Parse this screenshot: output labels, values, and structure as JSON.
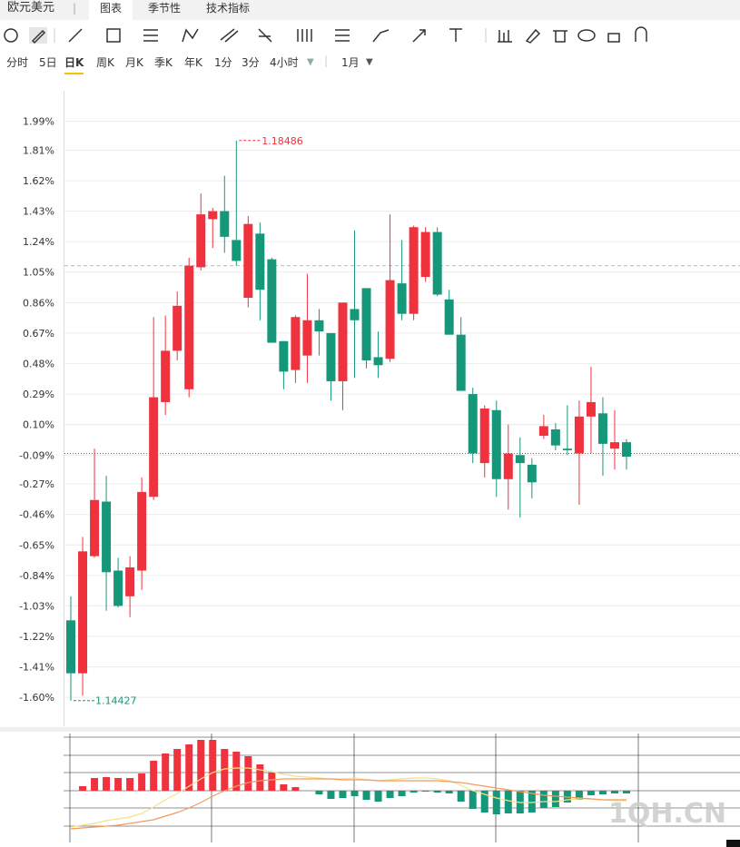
{
  "header": {
    "title": "欧元美元",
    "tabs": [
      "图表",
      "季节性",
      "技术指标"
    ]
  },
  "periods": [
    "分时",
    "5日",
    "日K",
    "周K",
    "月K",
    "季K",
    "年K",
    "1分",
    "3分",
    "4小时"
  ],
  "period_select": "1月",
  "watermark": "1QH.CN",
  "chart_data": [
    {
      "type": "candlestick",
      "up_color": "#f0323e",
      "down_color": "#17977a",
      "grid": true,
      "ylim": [
        -1.78,
        2.18
      ],
      "yticks": [
        {
          "value": 1.99,
          "label": "1.99%"
        },
        {
          "value": 1.81,
          "label": "1.81%"
        },
        {
          "value": 1.62,
          "label": "1.62%"
        },
        {
          "value": 1.43,
          "label": "1.43%"
        },
        {
          "value": 1.24,
          "label": "1.24%"
        },
        {
          "value": 1.05,
          "label": "1.05%"
        },
        {
          "value": 0.86,
          "label": "0.86%"
        },
        {
          "value": 0.67,
          "label": "0.67%"
        },
        {
          "value": 0.48,
          "label": "0.48%"
        },
        {
          "value": 0.29,
          "label": "0.29%"
        },
        {
          "value": 0.1,
          "label": "0.10%"
        },
        {
          "value": -0.09,
          "label": "-0.09%"
        },
        {
          "value": -0.27,
          "label": "-0.27%"
        },
        {
          "value": -0.46,
          "label": "-0.46%"
        },
        {
          "value": -0.65,
          "label": "-0.65%"
        },
        {
          "value": -0.84,
          "label": "-0.84%"
        },
        {
          "value": -1.03,
          "label": "-1.03%"
        },
        {
          "value": -1.22,
          "label": "-1.22%"
        },
        {
          "value": -1.41,
          "label": "-1.41%"
        },
        {
          "value": -1.6,
          "label": "-1.60%"
        }
      ],
      "open": [
        -1.12,
        -1.45,
        -0.72,
        -0.38,
        -0.81,
        -0.97,
        -0.81,
        -0.35,
        0.24,
        0.56,
        0.32,
        1.08,
        1.38,
        1.43,
        1.25,
        0.89,
        1.29,
        1.13,
        0.62,
        0.44,
        0.53,
        0.75,
        0.67,
        0.37,
        0.82,
        0.95,
        0.52,
        0.51,
        0.98,
        0.79,
        1.02,
        1.3,
        0.88,
        0.66,
        0.29,
        -0.14,
        0.19,
        -0.24,
        -0.09,
        -0.15,
        0.03,
        0.07,
        -0.05,
        -0.08,
        0.15,
        0.17,
        -0.05,
        -0.01
      ],
      "high": [
        -0.97,
        -0.6,
        -0.05,
        -0.22,
        -0.73,
        -0.72,
        -0.23,
        0.77,
        0.78,
        0.93,
        1.14,
        1.54,
        1.45,
        1.65,
        1.87,
        1.4,
        1.36,
        1.14,
        0.62,
        0.78,
        1.04,
        0.82,
        0.67,
        0.86,
        1.31,
        0.95,
        0.68,
        1.41,
        1.25,
        1.34,
        1.33,
        1.33,
        0.94,
        0.77,
        0.33,
        0.22,
        0.25,
        0.1,
        0.02,
        -0.11,
        0.16,
        0.11,
        0.22,
        0.25,
        0.46,
        0.27,
        0.19,
        0.01
      ],
      "low": [
        -1.62,
        -1.59,
        -0.73,
        -1.06,
        -1.04,
        -1.1,
        -0.93,
        -0.37,
        0.16,
        0.5,
        0.27,
        1.06,
        1.2,
        1.17,
        1.09,
        0.83,
        0.75,
        0.61,
        0.32,
        0.36,
        0.36,
        0.53,
        0.25,
        0.19,
        0.39,
        0.45,
        0.39,
        0.49,
        0.75,
        0.75,
        0.99,
        0.9,
        0.66,
        0.31,
        -0.14,
        -0.23,
        -0.35,
        -0.43,
        -0.48,
        -0.36,
        0.01,
        -0.06,
        -0.09,
        -0.4,
        -0.08,
        -0.22,
        -0.18,
        -0.18
      ],
      "close": [
        -1.45,
        -0.69,
        -0.37,
        -0.82,
        -1.03,
        -0.79,
        -0.32,
        0.27,
        0.56,
        0.84,
        1.09,
        1.41,
        1.43,
        1.27,
        1.12,
        1.35,
        0.94,
        0.61,
        0.43,
        0.77,
        0.75,
        0.68,
        0.37,
        0.86,
        0.75,
        0.5,
        0.47,
        1.0,
        0.79,
        1.33,
        1.3,
        0.91,
        0.66,
        0.31,
        -0.08,
        0.2,
        -0.24,
        -0.08,
        -0.14,
        -0.26,
        0.09,
        -0.03,
        -0.06,
        0.15,
        0.24,
        -0.02,
        -0.01,
        -0.1
      ],
      "annotations": [
        "1.18486",
        "1.14427"
      ],
      "reference_lines": [
        {
          "value": 1.09,
          "color": "#bbbbbb",
          "style": "dashed"
        },
        {
          "value": -0.08,
          "color": "#17977a",
          "style": "dotted"
        }
      ]
    },
    {
      "type": "macd",
      "ylim": [
        -5.7,
        6.3
      ],
      "histogram": [
        0,
        0.5,
        1.4,
        1.5,
        1.4,
        1.4,
        1.9,
        3.3,
        4.1,
        4.6,
        5.1,
        5.6,
        5.6,
        4.6,
        4.3,
        3.8,
        2.9,
        2,
        0.7,
        0.4,
        0,
        -0.4,
        -0.9,
        -0.8,
        -0.6,
        -1,
        -1.2,
        -0.8,
        -0.6,
        -0.2,
        -0.1,
        -0.2,
        -0.3,
        -1.2,
        -2,
        -2.4,
        -2.6,
        -2.5,
        -2.5,
        -2.4,
        -1.9,
        -1.8,
        -1.3,
        -1,
        -0.5,
        -0.4,
        -0.3,
        -0.3
      ],
      "up_color": "#f0323e",
      "down_color": "#17977a",
      "series": [
        {
          "color": "#f5e08a",
          "values": [
            -4,
            -3.8,
            -3.6,
            -3.3,
            -3.1,
            -2.9,
            -2.5,
            -1.8,
            -1,
            -0.3,
            0.5,
            1.3,
            2,
            2.4,
            2.5,
            2.5,
            2.3,
            2.1,
            1.8,
            1.6,
            1.5,
            1.4,
            1.3,
            1.3,
            1.4,
            1.2,
            1.1,
            1.2,
            1.3,
            1.4,
            1.4,
            1.3,
            1.1,
            0.6,
            0,
            -0.4,
            -0.8,
            -1.1,
            -1.3,
            -1.3,
            -1.2,
            -1.2,
            -1,
            -0.9,
            -0.9,
            -1,
            -1.1,
            -1.1
          ]
        },
        {
          "color": "#f39a5c",
          "values": [
            -4.2,
            -4.1,
            -4,
            -3.9,
            -3.8,
            -3.6,
            -3.4,
            -3.2,
            -2.8,
            -2.4,
            -1.9,
            -1.3,
            -0.6,
            0,
            0.5,
            0.9,
            1.1,
            1.2,
            1.3,
            1.3,
            1.3,
            1.3,
            1.3,
            1.2,
            1.2,
            1.2,
            1.1,
            1.1,
            1.1,
            1.1,
            1.1,
            1.1,
            1,
            0.9,
            0.7,
            0.5,
            0.3,
            0.1,
            -0.1,
            -0.3,
            -0.5,
            -0.6,
            -0.7,
            -0.8,
            -0.9,
            -1,
            -1,
            -1
          ]
        }
      ]
    }
  ]
}
